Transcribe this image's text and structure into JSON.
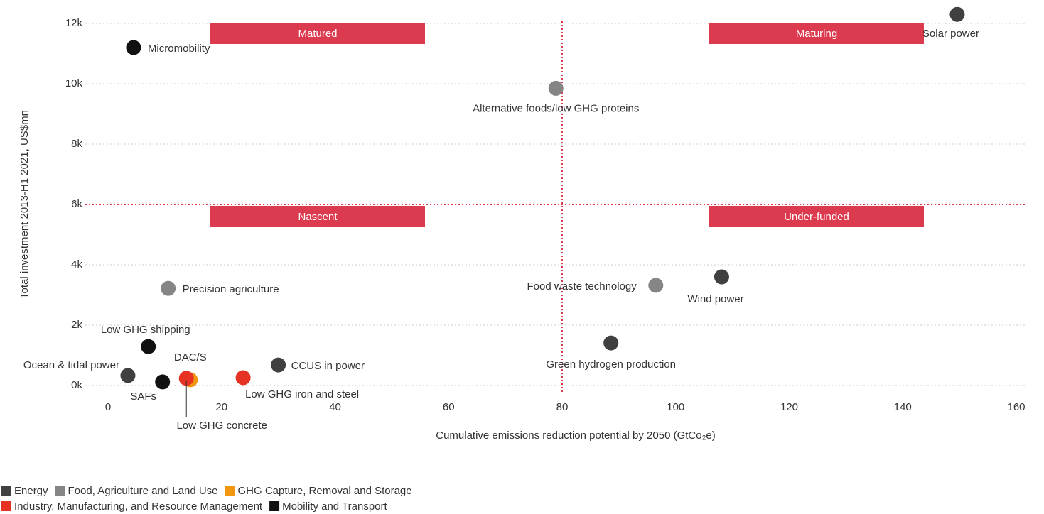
{
  "chart_data": {
    "type": "scatter",
    "x_label": "Cumulative emissions reduction potential by 2050 (GtCo₂e)",
    "y_label": "Total investment 2013-H1 2021, US$mn",
    "xlim": [
      0,
      160
    ],
    "ylim": [
      0,
      12300
    ],
    "xticks": [
      0,
      20,
      40,
      60,
      80,
      100,
      120,
      140,
      160
    ],
    "yticks": [
      {
        "value": 0,
        "label": "0k"
      },
      {
        "value": 2000,
        "label": "2k"
      },
      {
        "value": 4000,
        "label": "4k"
      },
      {
        "value": 6000,
        "label": "6k"
      },
      {
        "value": 8000,
        "label": "8k"
      },
      {
        "value": 10000,
        "label": "10k"
      },
      {
        "value": 12000,
        "label": "12k"
      }
    ],
    "grid": true,
    "divider_x": 80,
    "divider_y": 6000,
    "divider_color": "#dc3a4e",
    "quadrants": [
      "Matured",
      "Maturing",
      "Nascent",
      "Under-funded"
    ],
    "series": [
      {
        "name": "Energy",
        "color": "#404040",
        "x": [
          149.6,
          108.1,
          88.6,
          30,
          3.5
        ],
        "y": [
          12300,
          3600,
          1410,
          680,
          330
        ],
        "labels": [
          "Solar power",
          "Wind power",
          "Green hydrogen production",
          "CCUS in power",
          "Ocean & tidal power"
        ]
      },
      {
        "name": "Food, Agriculture and Land Use",
        "color": "#858585",
        "x": [
          78.9,
          10.6,
          96.5
        ],
        "y": [
          9850,
          3220,
          3320
        ],
        "labels": [
          "Alternative foods/low GHG proteins",
          "Precision agriculture",
          "Food waste technology"
        ]
      },
      {
        "name": "GHG Capture, Removal and Storage",
        "color": "#f0960f",
        "x": [
          14.5
        ],
        "y": [
          190
        ],
        "labels": [
          "DAC/S"
        ]
      },
      {
        "name": "Industry, Manufacturing, and Resource Management",
        "color": "#e63223",
        "x": [
          13.8,
          23.8
        ],
        "y": [
          240,
          260
        ],
        "labels": [
          "Low GHG concrete",
          "Low GHG iron and steel"
        ]
      },
      {
        "name": "Mobility and Transport",
        "color": "#111111",
        "x": [
          4.5,
          7.1,
          9.6
        ],
        "y": [
          11200,
          1290,
          120
        ],
        "labels": [
          "Micromobility",
          "Low GHG shipping",
          "SAFs"
        ]
      }
    ]
  }
}
